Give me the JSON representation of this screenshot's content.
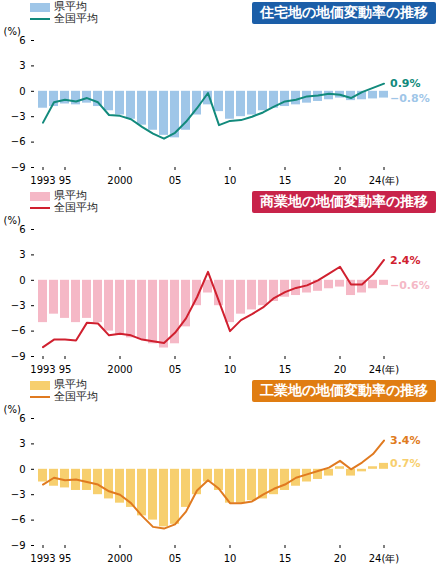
{
  "chart_data": [
    {
      "type": "bar",
      "title": "住宅地の地価変動率の推移",
      "y_label": "(%)",
      "categories": [
        "1993",
        null,
        "95",
        null,
        null,
        null,
        null,
        "2000",
        null,
        null,
        null,
        null,
        "05",
        null,
        null,
        null,
        null,
        "10",
        null,
        null,
        null,
        null,
        "15",
        null,
        null,
        null,
        null,
        "20",
        null,
        null,
        null,
        "24(年)"
      ],
      "ylim": [
        -9,
        6
      ],
      "yticks": [
        6,
        3,
        0,
        -3,
        -6,
        -9
      ],
      "legend": "top-left",
      "color": "#1b5ea8",
      "series": [
        {
          "name": "県平均",
          "type": "bar",
          "color": "#9fc6e8",
          "values": [
            -2.0,
            -1.8,
            -1.5,
            -1.6,
            -1.4,
            -1.8,
            -2.3,
            -2.8,
            -3.3,
            -4.0,
            -4.6,
            -5.2,
            -5.5,
            -4.6,
            -2.8,
            -1.6,
            -2.4,
            -3.3,
            -3.0,
            -2.8,
            -2.3,
            -2.0,
            -1.8,
            -1.6,
            -1.4,
            -1.2,
            -1.0,
            -0.8,
            -1.1,
            -1.0,
            -0.9,
            -0.8
          ],
          "value_labels": [
            null,
            null,
            null,
            null,
            null,
            null,
            null,
            null,
            null,
            null,
            null,
            null,
            null,
            null,
            null,
            null,
            null,
            null,
            null,
            null,
            null,
            null,
            null,
            null,
            null,
            null,
            null,
            null,
            null,
            null,
            null,
            "−0.8%"
          ]
        },
        {
          "name": "全国平均",
          "type": "line",
          "color": "#128a7c",
          "values": [
            -3.7,
            -1.3,
            -1.0,
            -1.2,
            -0.8,
            -1.3,
            -2.8,
            -2.9,
            -3.3,
            -4.2,
            -5.0,
            -5.6,
            -4.9,
            -3.6,
            -2.0,
            -0.2,
            -4.0,
            -3.5,
            -3.4,
            -3.0,
            -2.5,
            -1.8,
            -1.2,
            -1.0,
            -0.6,
            -0.5,
            -0.3,
            -0.4,
            -0.8,
            -0.1,
            0.4,
            0.9
          ],
          "value_labels": [
            null,
            null,
            null,
            null,
            null,
            null,
            null,
            null,
            null,
            null,
            null,
            null,
            null,
            null,
            null,
            null,
            null,
            null,
            null,
            null,
            null,
            null,
            null,
            null,
            null,
            null,
            null,
            null,
            null,
            null,
            null,
            "0.9%"
          ]
        }
      ]
    },
    {
      "type": "bar",
      "title": "商業地の地価変動率の推移",
      "y_label": "(%)",
      "categories": [
        "1993",
        null,
        "95",
        null,
        null,
        null,
        null,
        "2000",
        null,
        null,
        null,
        null,
        "05",
        null,
        null,
        null,
        null,
        "10",
        null,
        null,
        null,
        null,
        "15",
        null,
        null,
        null,
        null,
        "20",
        null,
        null,
        null,
        "24(年)"
      ],
      "ylim": [
        -9,
        6
      ],
      "yticks": [
        6,
        3,
        0,
        -3,
        -6,
        -9
      ],
      "legend": "top-left",
      "color": "#c8234a",
      "series": [
        {
          "name": "県平均",
          "type": "bar",
          "color": "#f5b8c6",
          "values": [
            -5.0,
            -4.0,
            -4.5,
            -5.0,
            -4.5,
            -5.0,
            -6.0,
            -6.5,
            -6.8,
            -7.0,
            -7.5,
            -8.0,
            -7.5,
            -5.5,
            -3.0,
            -1.5,
            -3.0,
            -5.0,
            -4.0,
            -3.5,
            -3.0,
            -2.5,
            -2.0,
            -1.8,
            -1.5,
            -1.3,
            -1.0,
            -0.8,
            -1.8,
            -1.5,
            -1.0,
            -0.6
          ],
          "value_labels": [
            null,
            null,
            null,
            null,
            null,
            null,
            null,
            null,
            null,
            null,
            null,
            null,
            null,
            null,
            null,
            null,
            null,
            null,
            null,
            null,
            null,
            null,
            null,
            null,
            null,
            null,
            null,
            null,
            null,
            null,
            null,
            "−0.6%"
          ]
        },
        {
          "name": "全国平均",
          "type": "line",
          "color": "#d0202f",
          "values": [
            -7.9,
            -7.0,
            -7.0,
            -7.1,
            -5.0,
            -5.1,
            -6.5,
            -6.3,
            -6.5,
            -7.0,
            -7.2,
            -7.4,
            -6.2,
            -4.5,
            -2.0,
            1.0,
            -2.5,
            -6.0,
            -4.7,
            -4.0,
            -3.2,
            -2.1,
            -1.4,
            -0.9,
            -0.6,
            0.0,
            0.8,
            1.6,
            -0.5,
            -0.5,
            0.7,
            2.4
          ],
          "value_labels": [
            null,
            null,
            null,
            null,
            null,
            null,
            null,
            null,
            null,
            null,
            null,
            null,
            null,
            null,
            null,
            null,
            null,
            null,
            null,
            null,
            null,
            null,
            null,
            null,
            null,
            null,
            null,
            null,
            null,
            null,
            null,
            "2.4%"
          ]
        }
      ]
    },
    {
      "type": "bar",
      "title": "工業地の地価変動率の推移",
      "y_label": "(%)",
      "categories": [
        "1993",
        null,
        "95",
        null,
        null,
        null,
        null,
        "2000",
        null,
        null,
        null,
        null,
        "05",
        null,
        null,
        null,
        null,
        "10",
        null,
        null,
        null,
        null,
        "15",
        null,
        null,
        null,
        null,
        "20",
        null,
        null,
        null,
        "24(年)"
      ],
      "ylim": [
        -9,
        6
      ],
      "yticks": [
        6,
        3,
        0,
        -3,
        -6,
        -9
      ],
      "legend": "top-left",
      "color": "#e07d12",
      "series": [
        {
          "name": "県平均",
          "type": "bar",
          "color": "#f7cf6e",
          "values": [
            -1.5,
            -2.0,
            -2.2,
            -2.5,
            -2.5,
            -3.0,
            -3.5,
            -4.0,
            -4.5,
            -5.5,
            -6.0,
            -6.8,
            -6.5,
            -4.5,
            -3.0,
            -1.5,
            -2.5,
            -4.0,
            -4.0,
            -3.7,
            -3.5,
            -3.0,
            -2.5,
            -2.0,
            -1.5,
            -1.2,
            -0.8,
            0.3,
            -0.8,
            -0.3,
            0.3,
            0.7
          ],
          "value_labels": [
            null,
            null,
            null,
            null,
            null,
            null,
            null,
            null,
            null,
            null,
            null,
            null,
            null,
            null,
            null,
            null,
            null,
            null,
            null,
            null,
            null,
            null,
            null,
            null,
            null,
            null,
            null,
            null,
            null,
            null,
            null,
            "0.7%"
          ]
        },
        {
          "name": "全国平均",
          "type": "line",
          "color": "#e07a20",
          "values": [
            -1.8,
            -1.0,
            -1.3,
            -1.2,
            -1.5,
            -1.8,
            -2.6,
            -3.0,
            -4.0,
            -5.5,
            -6.8,
            -7.0,
            -6.5,
            -5.0,
            -2.5,
            -1.3,
            -2.3,
            -4.0,
            -4.0,
            -3.8,
            -3.0,
            -2.3,
            -1.8,
            -1.0,
            -0.6,
            -0.2,
            0.2,
            1.0,
            0.0,
            0.8,
            1.8,
            3.4
          ],
          "value_labels": [
            null,
            null,
            null,
            null,
            null,
            null,
            null,
            null,
            null,
            null,
            null,
            null,
            null,
            null,
            null,
            null,
            null,
            null,
            null,
            null,
            null,
            null,
            null,
            null,
            null,
            null,
            null,
            null,
            null,
            null,
            null,
            "3.4%"
          ]
        }
      ]
    }
  ]
}
